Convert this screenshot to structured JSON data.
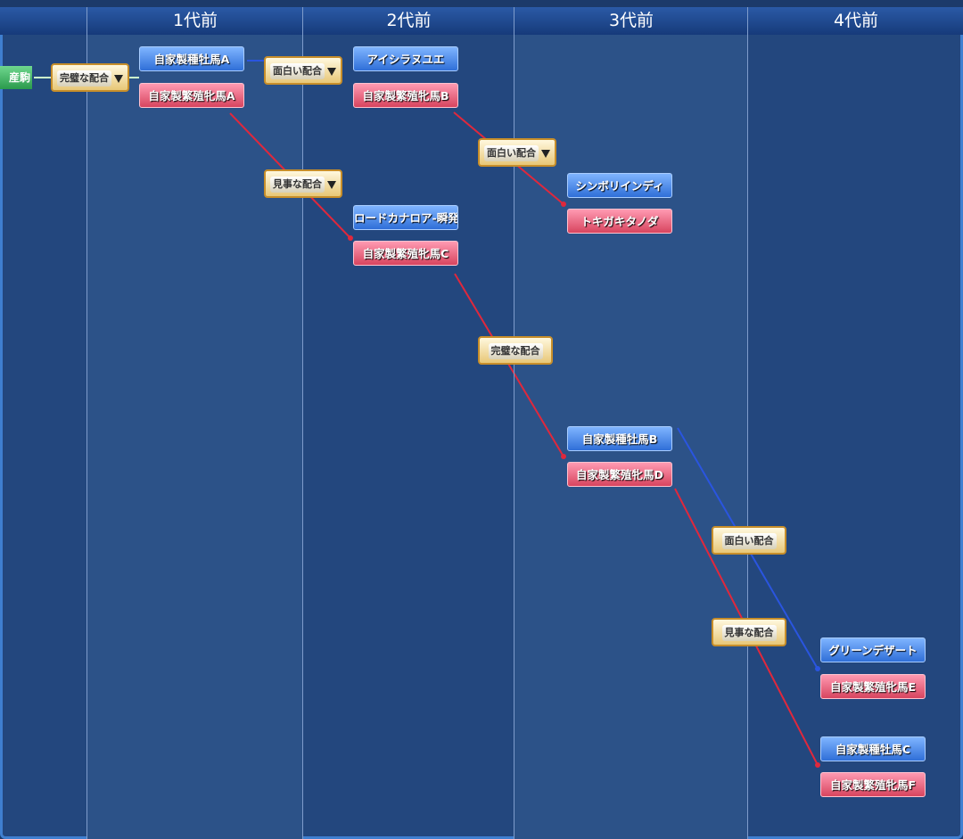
{
  "header": {
    "columns": [
      "1代前",
      "2代前",
      "3代前",
      "4代前"
    ]
  },
  "offspring": {
    "label": "産駒"
  },
  "nodes": [
    {
      "label": "自家製種牡馬A",
      "sex": "sire"
    },
    {
      "label": "自家製繁殖牝馬A",
      "sex": "dam"
    },
    {
      "label": "アイシラヌユエ",
      "sex": "sire"
    },
    {
      "label": "自家製繁殖牝馬B",
      "sex": "dam"
    },
    {
      "label": "シンボリインディ",
      "sex": "sire"
    },
    {
      "label": "トキガキタノダ",
      "sex": "dam"
    },
    {
      "label": "ロードカナロア-瞬発-",
      "sex": "sire"
    },
    {
      "label": "自家製繁殖牝馬C",
      "sex": "dam"
    },
    {
      "label": "自家製種牡馬B",
      "sex": "sire"
    },
    {
      "label": "自家製繁殖牝馬D",
      "sex": "dam"
    },
    {
      "label": "グリーンデザート",
      "sex": "sire"
    },
    {
      "label": "自家製繁殖牝馬E",
      "sex": "dam"
    },
    {
      "label": "自家製種牡馬C",
      "sex": "sire"
    },
    {
      "label": "自家製繁殖牝馬F",
      "sex": "dam"
    }
  ],
  "badges": [
    {
      "label": "完璧な配合"
    },
    {
      "label": "面白い配合"
    },
    {
      "label": "面白い配合"
    },
    {
      "label": "見事な配合"
    },
    {
      "label": "完璧な配合"
    },
    {
      "label": "面白い配合"
    },
    {
      "label": "見事な配合"
    }
  ]
}
